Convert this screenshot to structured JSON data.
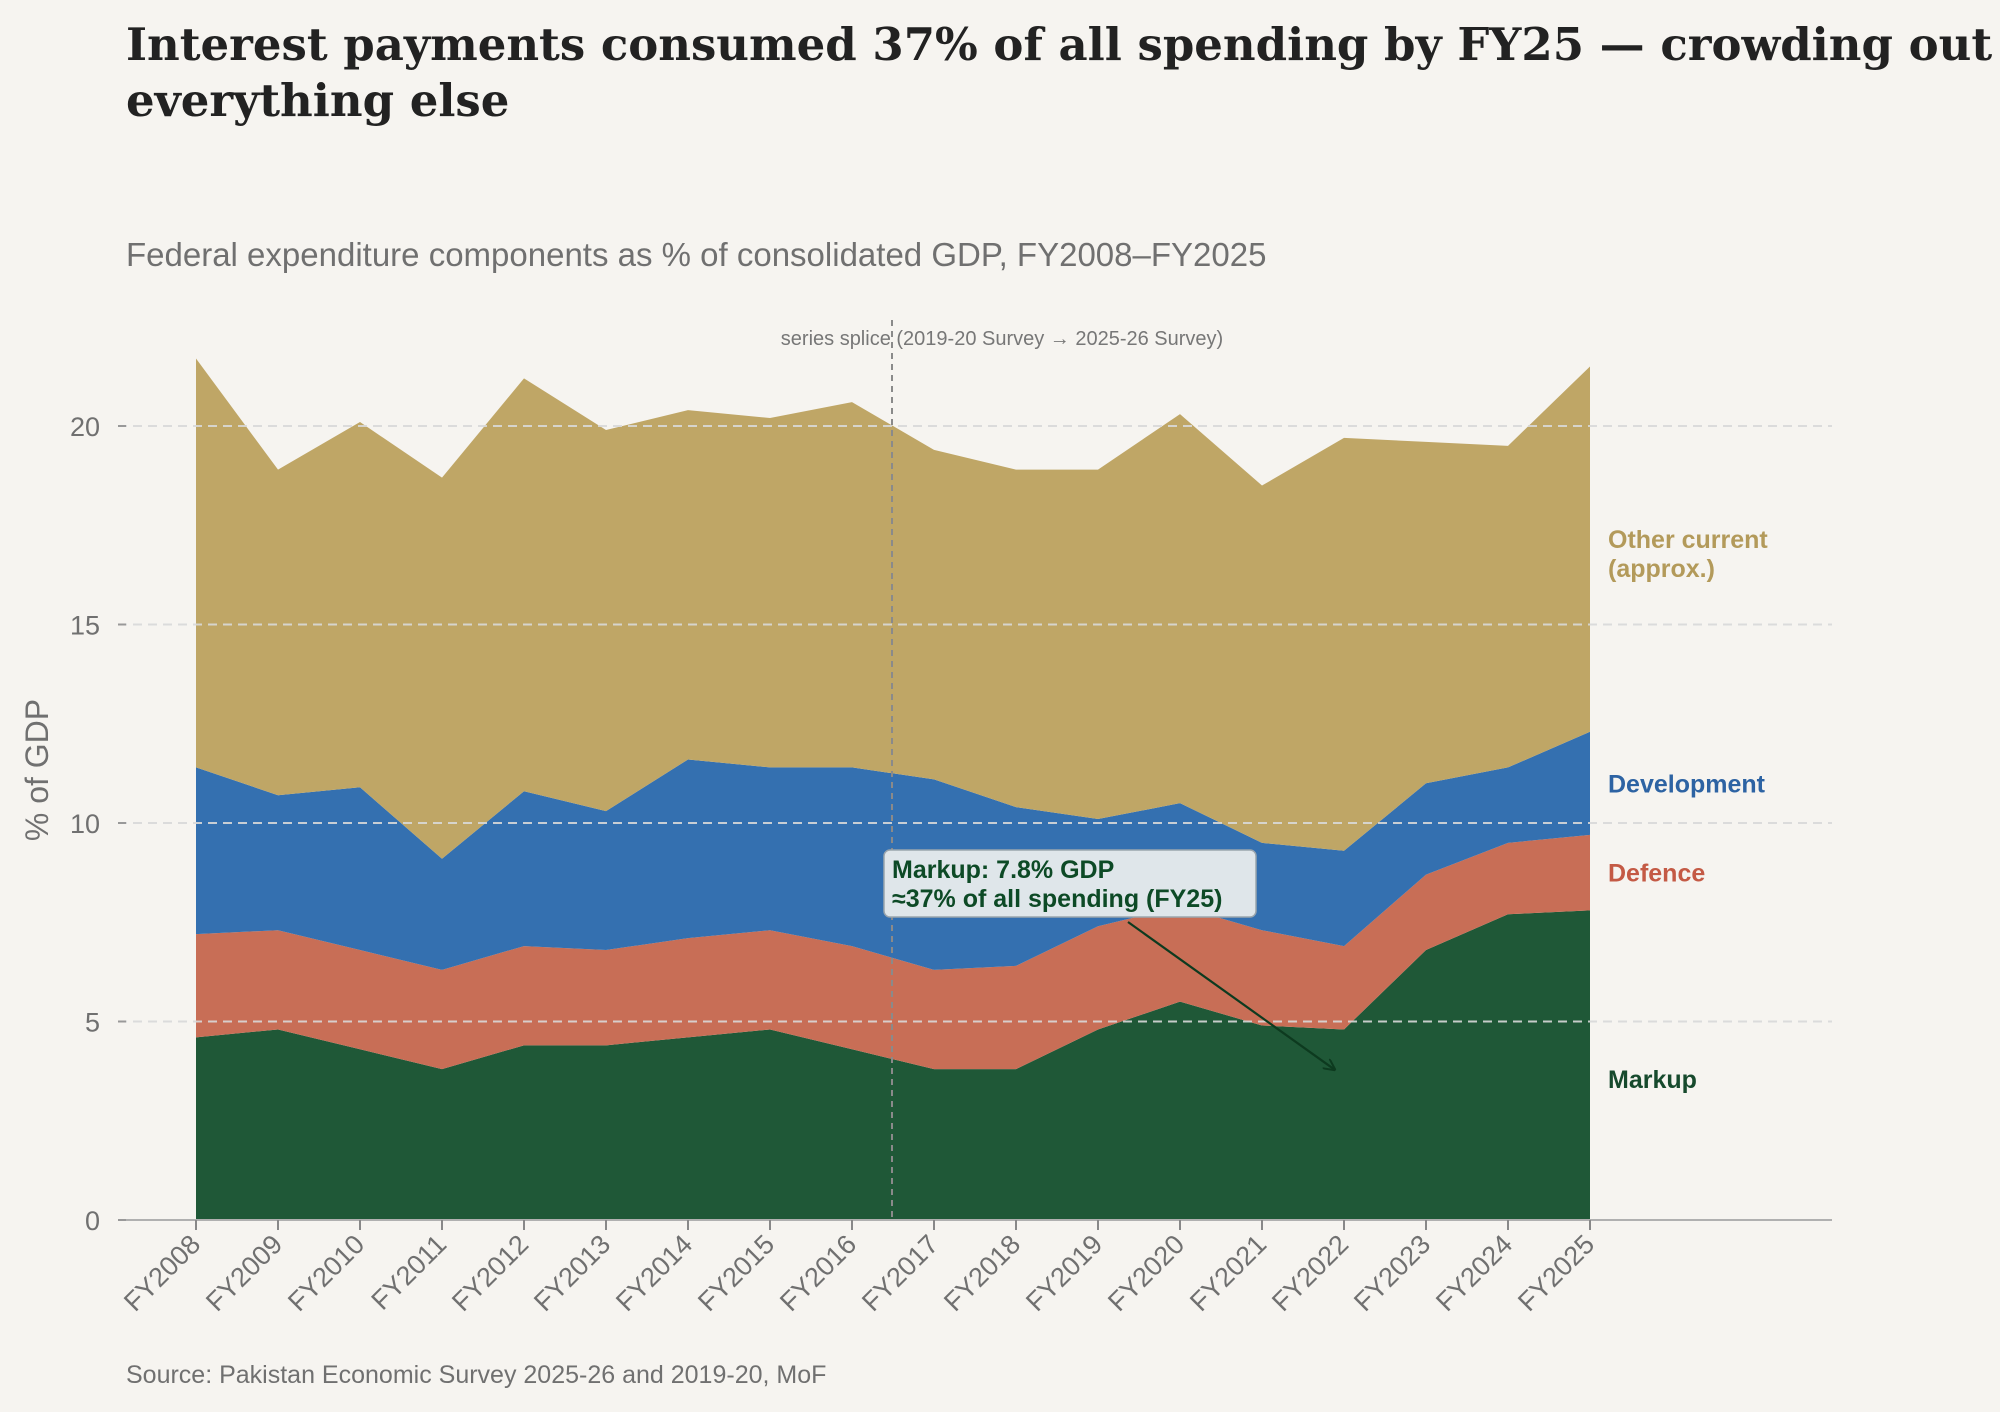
{
  "chart_data": {
    "type": "area",
    "stacked": true,
    "title": "Interest payments consumed 37% of all spending by FY25 — crowding out everything else",
    "subtitle": "Federal expenditure components as % of consolidated GDP, FY2008–FY2025",
    "ylabel": "% of GDP",
    "xlabel": "",
    "ylim": [
      0,
      22
    ],
    "yticks": [
      0,
      5,
      10,
      15,
      20
    ],
    "grid": true,
    "legend": "inline-right",
    "source": "Source: Pakistan Economic Survey 2025-26 and 2019-20, MoF",
    "categories": [
      "FY2008",
      "FY2009",
      "FY2010",
      "FY2011",
      "FY2012",
      "FY2013",
      "FY2014",
      "FY2015",
      "FY2016",
      "FY2017",
      "FY2018",
      "FY2019",
      "FY2020",
      "FY2021",
      "FY2022",
      "FY2023",
      "FY2024",
      "FY2025"
    ],
    "series": [
      {
        "name": "Markup",
        "color": "#1f5837",
        "label_color": "#174a2d",
        "values": [
          4.6,
          4.8,
          4.3,
          3.8,
          4.4,
          4.4,
          4.6,
          4.8,
          4.3,
          3.8,
          3.8,
          4.8,
          5.5,
          4.9,
          4.8,
          6.8,
          7.7,
          7.8
        ]
      },
      {
        "name": "Defence",
        "color": "#c86e56",
        "label_color": "#c45a45",
        "values": [
          2.6,
          2.5,
          2.5,
          2.5,
          2.5,
          2.4,
          2.5,
          2.5,
          2.6,
          2.5,
          2.6,
          2.6,
          2.4,
          2.4,
          2.1,
          1.9,
          1.8,
          1.9
        ]
      },
      {
        "name": "Development",
        "color": "#3470b0",
        "label_color": "#2d63a3",
        "values": [
          4.2,
          3.4,
          4.1,
          2.8,
          3.9,
          3.5,
          4.5,
          4.1,
          4.5,
          4.8,
          4.0,
          2.7,
          2.6,
          2.2,
          2.4,
          2.3,
          1.9,
          2.6
        ]
      },
      {
        "name": "Other current\n(approx.)",
        "color": "#bfa666",
        "label_color": "#b39a5a",
        "values": [
          10.3,
          8.2,
          9.2,
          9.6,
          10.4,
          9.6,
          8.8,
          8.8,
          9.2,
          8.3,
          8.5,
          8.8,
          9.8,
          9.0,
          10.4,
          8.6,
          8.1,
          9.2
        ]
      }
    ],
    "splice": {
      "after": "FY2016",
      "label": "series splice (2019-20 Survey → 2025-26 Survey)"
    },
    "annotation": {
      "text_line1": "Markup: 7.8% GDP",
      "text_line2": "≈37% of all spending (FY25)",
      "arrow_to": {
        "x": "FY2022",
        "y": 4.0
      }
    }
  }
}
